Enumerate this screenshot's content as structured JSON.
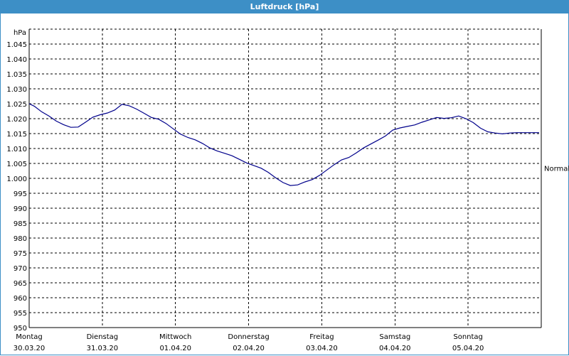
{
  "window": {
    "title": "Luftdruck [hPa]"
  },
  "chart_data": {
    "type": "line",
    "title": "Luftdruck [hPa]",
    "ylabel": "hPa",
    "ylim": [
      950,
      1050
    ],
    "yticks": [
      950,
      955,
      960,
      965,
      970,
      975,
      980,
      985,
      990,
      995,
      1000,
      1005,
      1010,
      1015,
      1020,
      1025,
      1030,
      1035,
      1040,
      1045
    ],
    "ytick_labels": [
      "950",
      "955",
      "960",
      "965",
      "970",
      "975",
      "980",
      "985",
      "990",
      "995",
      "1.000",
      "1.005",
      "1.010",
      "1.015",
      "1.020",
      "1.025",
      "1.030",
      "1.035",
      "1.040",
      "1.045"
    ],
    "xlim": [
      0,
      7
    ],
    "x_unit": "days since start",
    "xticks": [
      {
        "day": "Montag",
        "date": "30.03.20"
      },
      {
        "day": "Dienstag",
        "date": "31.03.20"
      },
      {
        "day": "Mittwoch",
        "date": "01.04.20"
      },
      {
        "day": "Donnerstag",
        "date": "02.04.20"
      },
      {
        "day": "Freitag",
        "date": "03.04.20"
      },
      {
        "day": "Samstag",
        "date": "04.04.20"
      },
      {
        "day": "Sonntag",
        "date": "05.04.20"
      }
    ],
    "grid": true,
    "reference_line": {
      "label": "Normal",
      "value": 1003.5
    },
    "series": [
      {
        "name": "Luftdruck",
        "color": "#00008b",
        "x": [
          0.0,
          0.07,
          0.17,
          0.27,
          0.37,
          0.47,
          0.57,
          0.67,
          0.77,
          0.87,
          0.97,
          1.07,
          1.17,
          1.27,
          1.37,
          1.47,
          1.57,
          1.67,
          1.77,
          1.87,
          1.97,
          2.07,
          2.17,
          2.27,
          2.37,
          2.47,
          2.57,
          2.67,
          2.77,
          2.87,
          2.97,
          3.07,
          3.17,
          3.27,
          3.37,
          3.47,
          3.57,
          3.67,
          3.77,
          3.87,
          3.97,
          4.07,
          4.17,
          4.27,
          4.37,
          4.47,
          4.57,
          4.67,
          4.77,
          4.87,
          4.97,
          5.07,
          5.17,
          5.27,
          5.37,
          5.47,
          5.57,
          5.67,
          5.77,
          5.87,
          5.97,
          6.07,
          6.17,
          6.27,
          6.37,
          6.47,
          6.57,
          6.67,
          6.77,
          6.87,
          6.97
        ],
        "y": [
          1025.0,
          1024.2,
          1022.3,
          1020.9,
          1019.2,
          1018.0,
          1017.1,
          1017.2,
          1018.8,
          1020.5,
          1021.3,
          1021.9,
          1022.9,
          1024.8,
          1024.3,
          1023.2,
          1021.8,
          1020.4,
          1019.8,
          1018.4,
          1016.6,
          1014.8,
          1013.7,
          1012.9,
          1011.7,
          1010.2,
          1009.2,
          1008.4,
          1007.6,
          1006.4,
          1005.2,
          1004.3,
          1003.4,
          1002.0,
          1000.2,
          998.6,
          997.6,
          997.8,
          998.8,
          999.6,
          1001.0,
          1002.8,
          1004.6,
          1006.2,
          1007.0,
          1008.5,
          1010.2,
          1011.5,
          1012.8,
          1014.2,
          1016.2,
          1016.9,
          1017.4,
          1017.9,
          1018.8,
          1019.6,
          1020.4,
          1020.1,
          1020.3,
          1020.9,
          1020.0,
          1018.7,
          1016.8,
          1015.6,
          1015.2,
          1014.9,
          1015.2,
          1015.3,
          1015.3,
          1015.3,
          1015.3
        ]
      }
    ]
  }
}
